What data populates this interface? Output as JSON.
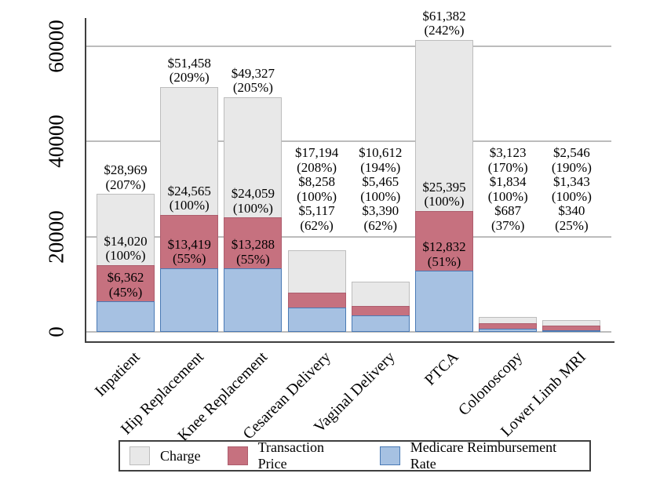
{
  "chart_data": {
    "type": "bar",
    "variant": "overlapped-bars",
    "title": "",
    "xlabel": "",
    "ylabel": "",
    "ylim": [
      0,
      66000
    ],
    "grid": true,
    "legend_position": "bottom",
    "y_axis": {
      "ticks": [
        {
          "value": 0,
          "label": "0"
        },
        {
          "value": 20000,
          "label": "20000"
        },
        {
          "value": 40000,
          "label": "40000"
        },
        {
          "value": 60000,
          "label": "60000"
        }
      ]
    },
    "series_meta": [
      {
        "key": "charge",
        "name": "Charge",
        "fill": "#e8e8e8",
        "border": "#bdbdbd"
      },
      {
        "key": "transaction",
        "name": "Transaction Price",
        "fill": "#c6717f",
        "border": "#ad5d6d"
      },
      {
        "key": "medicare",
        "name": "Medicare Reimbursement Rate",
        "fill": "#a6c1e2",
        "border": "#4a7ab5"
      }
    ],
    "bars": [
      {
        "category": "Inpatient",
        "label_mode": "attached",
        "charge": {
          "value": 28969,
          "label": "$28,969",
          "pct": "(207%)"
        },
        "transaction": {
          "value": 14020,
          "label": "$14,020",
          "pct": "(100%)"
        },
        "medicare": {
          "value": 6362,
          "label": "$6,362",
          "pct": "(45%)"
        }
      },
      {
        "category": "Hip Replacement",
        "label_mode": "attached",
        "charge": {
          "value": 51458,
          "label": "$51,458",
          "pct": "(209%)"
        },
        "transaction": {
          "value": 24565,
          "label": "$24,565",
          "pct": "(100%)"
        },
        "medicare": {
          "value": 13419,
          "label": "$13,419",
          "pct": "(55%)"
        }
      },
      {
        "category": "Knee Replacement",
        "label_mode": "attached",
        "charge": {
          "value": 49327,
          "label": "$49,327",
          "pct": "(205%)"
        },
        "transaction": {
          "value": 24059,
          "label": "$24,059",
          "pct": "(100%)"
        },
        "medicare": {
          "value": 13288,
          "label": "$13,288",
          "pct": "(55%)"
        }
      },
      {
        "category": "Cesarean Delivery",
        "label_mode": "stacked",
        "charge": {
          "value": 17194,
          "label": "$17,194",
          "pct": "(208%)"
        },
        "transaction": {
          "value": 8258,
          "label": "$8,258",
          "pct": "(100%)"
        },
        "medicare": {
          "value": 5117,
          "label": "$5,117",
          "pct": "(62%)"
        }
      },
      {
        "category": "Vaginal Delivery",
        "label_mode": "stacked",
        "charge": {
          "value": 10612,
          "label": "$10,612",
          "pct": "(194%)"
        },
        "transaction": {
          "value": 5465,
          "label": "$5,465",
          "pct": "(100%)"
        },
        "medicare": {
          "value": 3390,
          "label": "$3,390",
          "pct": "(62%)"
        }
      },
      {
        "category": "PTCA",
        "label_mode": "attached",
        "charge": {
          "value": 61382,
          "label": "$61,382",
          "pct": "(242%)"
        },
        "transaction": {
          "value": 25395,
          "label": "$25,395",
          "pct": "(100%)"
        },
        "medicare": {
          "value": 12832,
          "label": "$12,832",
          "pct": "(51%)"
        }
      },
      {
        "category": "Colonoscopy",
        "label_mode": "stacked",
        "charge": {
          "value": 3123,
          "label": "$3,123",
          "pct": "(170%)"
        },
        "transaction": {
          "value": 1834,
          "label": "$1,834",
          "pct": "(100%)"
        },
        "medicare": {
          "value": 687,
          "label": "$687",
          "pct": "(37%)"
        }
      },
      {
        "category": "Lower Limb MRI",
        "label_mode": "stacked",
        "charge": {
          "value": 2546,
          "label": "$2,546",
          "pct": "(190%)"
        },
        "transaction": {
          "value": 1343,
          "label": "$1,343",
          "pct": "(100%)"
        },
        "medicare": {
          "value": 340,
          "label": "$340",
          "pct": "(25%)"
        }
      }
    ]
  }
}
